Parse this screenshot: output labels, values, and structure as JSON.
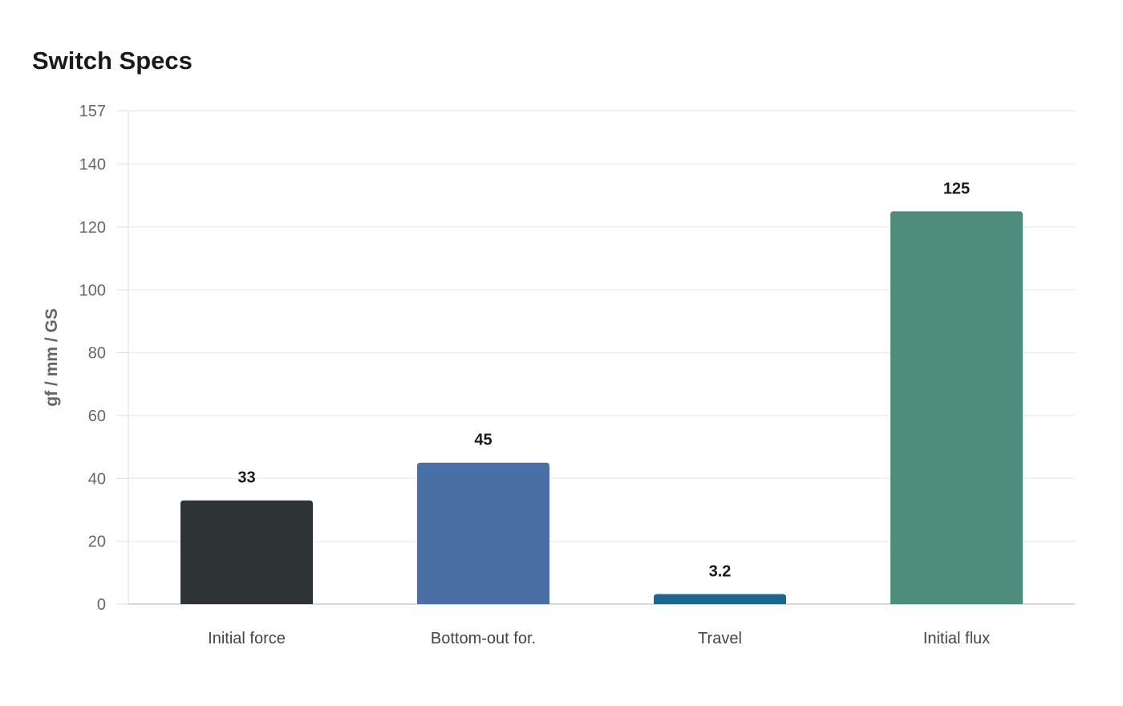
{
  "chart_data": {
    "type": "bar",
    "title": "Switch Specs",
    "xlabel": "",
    "ylabel": "gf / mm / GS",
    "categories": [
      "Initial force",
      "Bottom-out for.",
      "Travel",
      "Initial flux"
    ],
    "values": [
      33,
      45,
      3.2,
      125
    ],
    "value_labels": [
      "33",
      "45",
      "3.2",
      "125"
    ],
    "colors": [
      "#2e3436",
      "#4a6fa5",
      "#1e6591",
      "#4e8d7c"
    ],
    "ylim": [
      0,
      157
    ],
    "yticks": [
      0,
      20,
      40,
      60,
      80,
      100,
      120,
      140,
      157
    ],
    "grid": true,
    "legend": "none"
  }
}
